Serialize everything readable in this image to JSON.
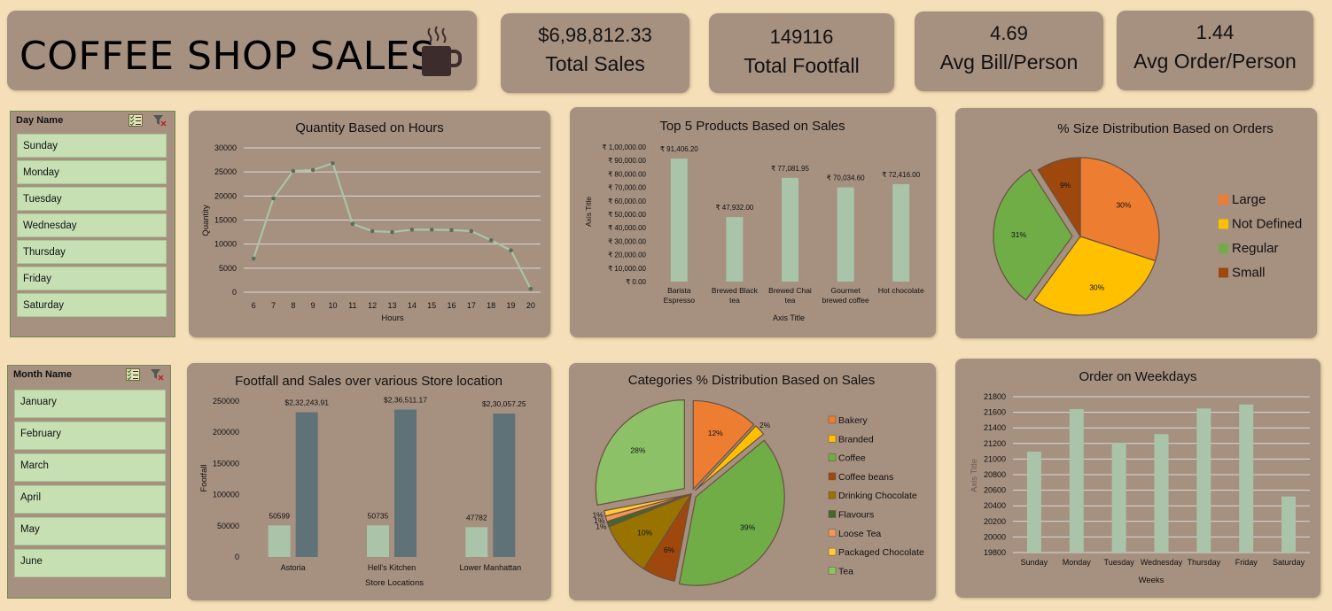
{
  "header": {
    "title": "COFFEE SHOP SALES",
    "logo_icon": "coffee-mug-icon"
  },
  "kpis": [
    {
      "value": "$6,98,812.33",
      "label": "Total Sales"
    },
    {
      "value": "149116",
      "label": "Total Footfall"
    },
    {
      "value": "4.69",
      "label": "Avg Bill/Person"
    },
    {
      "value": "1.44",
      "label": "Avg Order/Person"
    }
  ],
  "slicers": {
    "day": {
      "title": "Day Name",
      "items": [
        "Sunday",
        "Monday",
        "Tuesday",
        "Wednesday",
        "Thursday",
        "Friday",
        "Saturday"
      ]
    },
    "month": {
      "title": "Month Name",
      "items": [
        "January",
        "February",
        "March",
        "April",
        "May",
        "June"
      ]
    }
  },
  "colors": {
    "bar": "#a9c4a8",
    "bar_dark": "#5f7278",
    "card": "#a69080",
    "background": "#f5dfb8",
    "line": "#a9c4a8"
  },
  "chart_data": [
    {
      "id": "hours",
      "type": "line",
      "title": "Quantity Based on Hours",
      "xlabel": "Hours",
      "ylabel": "Quantity",
      "x": [
        "6",
        "7",
        "8",
        "9",
        "10",
        "11",
        "12",
        "13",
        "14",
        "15",
        "16",
        "17",
        "18",
        "19",
        "20"
      ],
      "values": [
        7000,
        19500,
        25200,
        25400,
        26800,
        14200,
        12700,
        12500,
        13000,
        13000,
        12900,
        12700,
        10800,
        8700,
        700
      ],
      "ylim": [
        0,
        30000
      ],
      "yticks": [
        "0",
        "5000",
        "10000",
        "15000",
        "20000",
        "25000",
        "30000"
      ],
      "grid": true
    },
    {
      "id": "top5",
      "type": "bar",
      "title": "Top 5 Products Based on Sales",
      "xlabel": "Axis Title",
      "ylabel": "Axis Title",
      "categories": [
        [
          "Barista",
          "Espresso"
        ],
        [
          "Brewed Black",
          "tea"
        ],
        [
          "Brewed Chai",
          "tea"
        ],
        [
          "Gourmet",
          "brewed coffee"
        ],
        [
          "Hot chocolate"
        ]
      ],
      "values": [
        91406.2,
        47932.0,
        77081.95,
        70034.6,
        72416.0
      ],
      "labels": [
        "₹ 91,406.20",
        "₹ 47,932.00",
        "₹ 77,081.95",
        "₹ 70,034.60",
        "₹ 72,416.00"
      ],
      "ylim": [
        0,
        100000
      ],
      "yticks": [
        "₹ 0.00",
        "₹ 10,000.00",
        "₹ 20,000.00",
        "₹ 30,000.00",
        "₹ 40,000.00",
        "₹ 50,000.00",
        "₹ 60,000.00",
        "₹ 70,000.00",
        "₹ 80,000.00",
        "₹ 90,000.00",
        "₹ 1,00,000.00"
      ],
      "grid": false
    },
    {
      "id": "size",
      "type": "pie",
      "title": "% Size Distribution Based on Orders",
      "series": [
        {
          "name": "Large",
          "value": 30,
          "label": "30%",
          "color": "#ed7d31"
        },
        {
          "name": "Not Defined",
          "value": 30,
          "label": "30%",
          "color": "#ffc000"
        },
        {
          "name": "Regular",
          "value": 31,
          "label": "31%",
          "color": "#70ad47"
        },
        {
          "name": "Small",
          "value": 9,
          "label": "9%",
          "color": "#9e480e"
        }
      ],
      "legend": "right"
    },
    {
      "id": "stores",
      "type": "bar",
      "title": "Footfall and Sales over various Store location",
      "xlabel": "Store Locations",
      "ylabel": "Footfall",
      "categories": [
        "Astoria",
        "Hell's Kitchen",
        "Lower Manhattan"
      ],
      "series": [
        {
          "values": [
            50599,
            50735,
            47782
          ],
          "labels": [
            "50599",
            "50735",
            "47782"
          ]
        },
        {
          "values": [
            232243.91,
            236511.17,
            230057.25
          ],
          "labels": [
            "$2,32,243.91",
            "$2,36,511.17",
            "$2,30,057.25"
          ]
        }
      ],
      "ylim": [
        0,
        250000
      ],
      "yticks": [
        "0",
        "50000",
        "100000",
        "150000",
        "200000",
        "250000"
      ],
      "grid": false
    },
    {
      "id": "categories",
      "type": "pie",
      "title": "Categories % Distribution Based on Sales",
      "series": [
        {
          "name": "Bakery",
          "value": 12,
          "label": "12%",
          "color": "#ed7d31"
        },
        {
          "name": "Branded",
          "value": 2,
          "label": "2%",
          "color": "#ffc000"
        },
        {
          "name": "Coffee",
          "value": 39,
          "label": "39%",
          "color": "#70ad47"
        },
        {
          "name": "Coffee beans",
          "value": 6,
          "label": "6%",
          "color": "#9e480e"
        },
        {
          "name": "Drinking Chocolate",
          "value": 10,
          "label": "10%",
          "color": "#997300"
        },
        {
          "name": "Flavours",
          "value": 1,
          "label": "1%",
          "color": "#43682b"
        },
        {
          "name": "Loose Tea",
          "value": 1,
          "label": "1%",
          "color": "#f1975a"
        },
        {
          "name": "Packaged Chocolate",
          "value": 1,
          "label": "1%",
          "color": "#ffcd33"
        },
        {
          "name": "Tea",
          "value": 28,
          "label": "28%",
          "color": "#8cc168"
        }
      ],
      "legend": "right"
    },
    {
      "id": "weekdays",
      "type": "bar",
      "title": "Order on Weekdays",
      "xlabel": "Weeks",
      "ylabel": "Axis Title",
      "categories": [
        "Sunday",
        "Monday",
        "Tuesday",
        "Wednesday",
        "Thursday",
        "Friday",
        "Saturday"
      ],
      "values": [
        21095,
        21640,
        21210,
        21320,
        21650,
        21700,
        20520
      ],
      "ylim": [
        19800,
        21800
      ],
      "yticks": [
        "19800",
        "20000",
        "20200",
        "20400",
        "20600",
        "20800",
        "21000",
        "21200",
        "21400",
        "21600",
        "21800"
      ],
      "grid": true
    }
  ]
}
